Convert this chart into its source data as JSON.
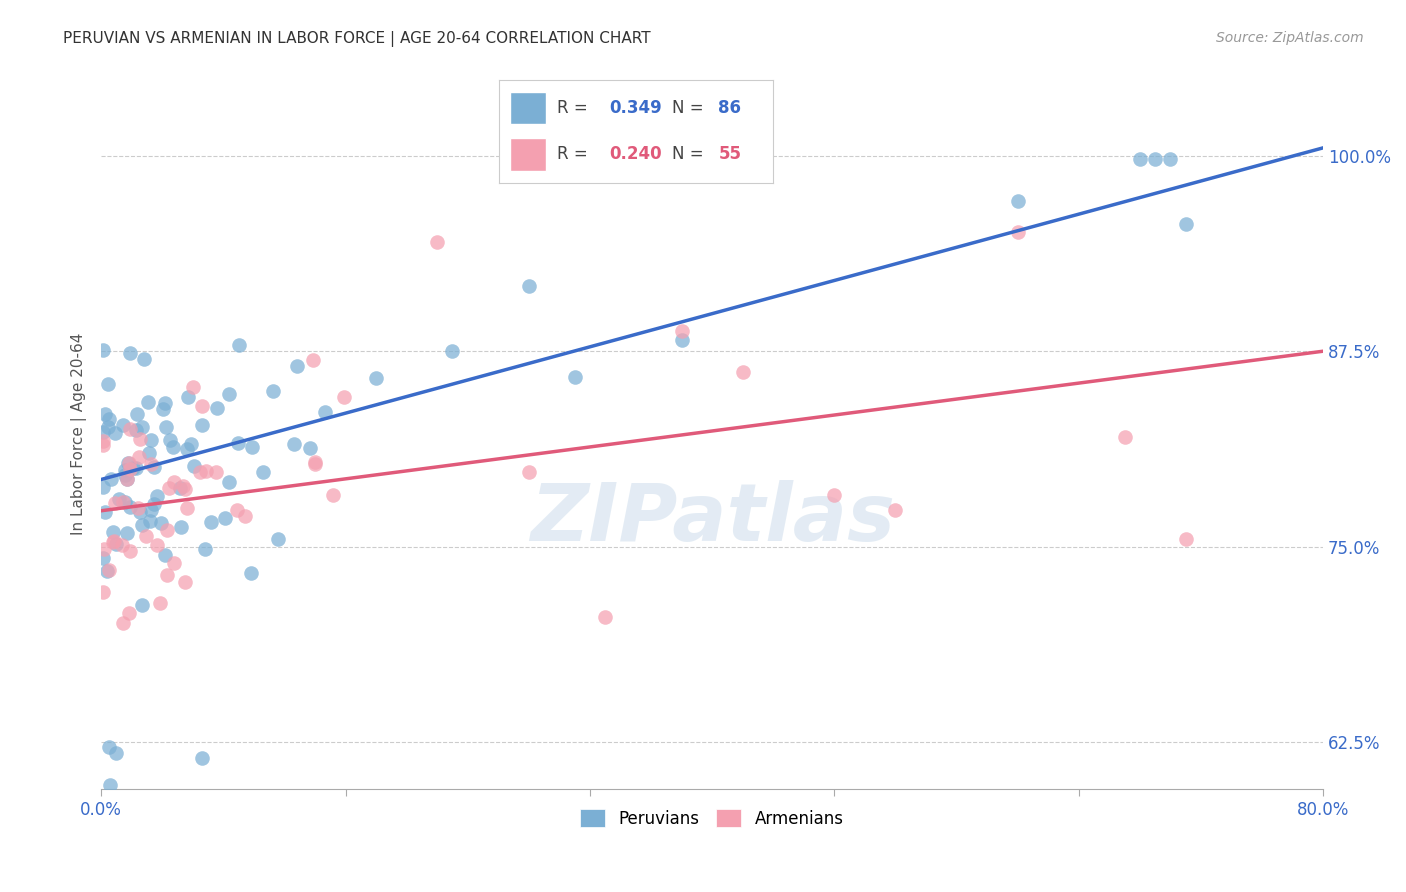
{
  "title": "PERUVIAN VS ARMENIAN IN LABOR FORCE | AGE 20-64 CORRELATION CHART",
  "source": "Source: ZipAtlas.com",
  "ylabel": "In Labor Force | Age 20-64",
  "xlim": [
    0.0,
    0.8
  ],
  "ylim": [
    0.595,
    1.05
  ],
  "yticks": [
    0.625,
    0.75,
    0.875,
    1.0
  ],
  "ytick_labels": [
    "62.5%",
    "75.0%",
    "87.5%",
    "100.0%"
  ],
  "xticks": [
    0.0,
    0.16,
    0.32,
    0.48,
    0.64,
    0.8
  ],
  "xtick_labels": [
    "0.0%",
    "",
    "",
    "",
    "",
    "80.0%"
  ],
  "peruvian_R": 0.349,
  "peruvian_N": 86,
  "armenian_R": 0.24,
  "armenian_N": 55,
  "peruvian_color": "#7bafd4",
  "armenian_color": "#f4a0b0",
  "peruvian_line_color": "#3a6bc9",
  "armenian_line_color": "#e05a7a",
  "legend_peruvian": "Peruvians",
  "legend_armenian": "Armenians",
  "background_color": "#ffffff",
  "grid_color": "#cccccc",
  "watermark": "ZIPatlas",
  "title_fontsize": 11,
  "tick_label_color": "#3a6bc9",
  "peru_line_x0": 0.0,
  "peru_line_y0": 0.793,
  "peru_line_x1": 0.8,
  "peru_line_y1": 1.005,
  "arm_line_x0": 0.0,
  "arm_line_y0": 0.773,
  "arm_line_x1": 0.8,
  "arm_line_y1": 0.875
}
